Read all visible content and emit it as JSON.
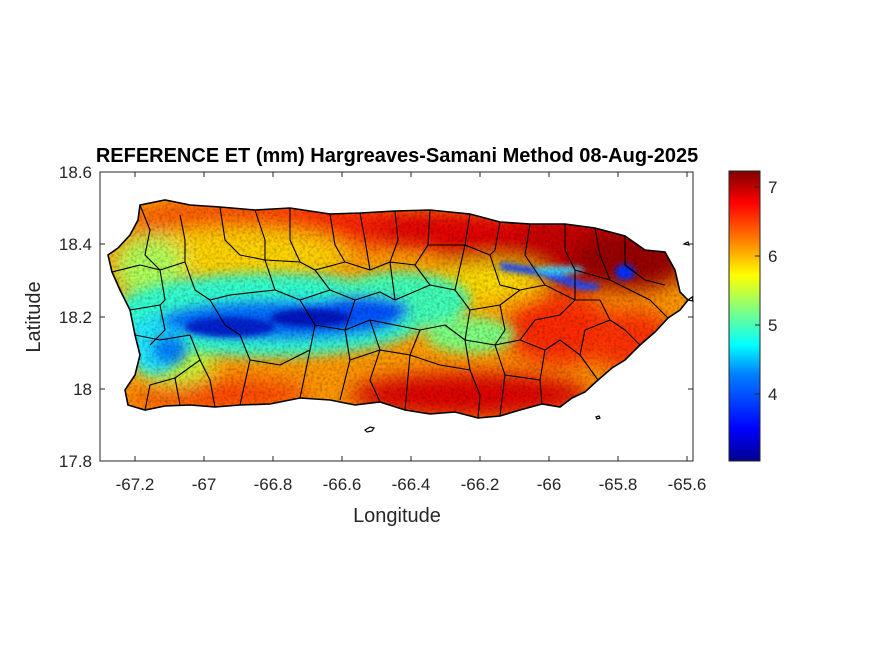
{
  "title": "REFERENCE ET (mm) Hargreaves-Samani Method  08-Aug-2025",
  "xlabel": "Longitude",
  "ylabel": "Latitude",
  "x_ticks": [
    "-67.2",
    "-67",
    "-66.8",
    "-66.6",
    "-66.4",
    "-66.2",
    "-66",
    "-65.8",
    "-65.6"
  ],
  "y_ticks": [
    "18.6",
    "18.4",
    "18.2",
    "18",
    "17.8"
  ],
  "colorbar": {
    "ticks": [
      "7",
      "6",
      "5",
      "4"
    ],
    "colors": [
      "#00008f",
      "#0000ff",
      "#0080ff",
      "#00ffff",
      "#80ff80",
      "#ffff00",
      "#ff8000",
      "#ff0000",
      "#800000"
    ]
  },
  "chart_data": {
    "type": "heatmap",
    "title": "REFERENCE ET (mm) Hargreaves-Samani Method  08-Aug-2025",
    "xlabel": "Longitude",
    "ylabel": "Latitude",
    "xlim": [
      -67.3,
      -65.58
    ],
    "ylim": [
      17.8,
      18.6
    ],
    "colorbar_range": [
      3.05,
      7.25
    ],
    "colormap": "jet",
    "region": "Puerto Rico",
    "pattern": {
      "low_values_mm": "about 3.5-4.5 along central mountain band (-67.0 to -66.3, ~18.2)",
      "high_values_mm": "about 6.5-7.2 on northeast and south coasts",
      "corridor_low": "narrow low band near (-66.05, 18.33) to (-65.85, 18.30)"
    }
  }
}
